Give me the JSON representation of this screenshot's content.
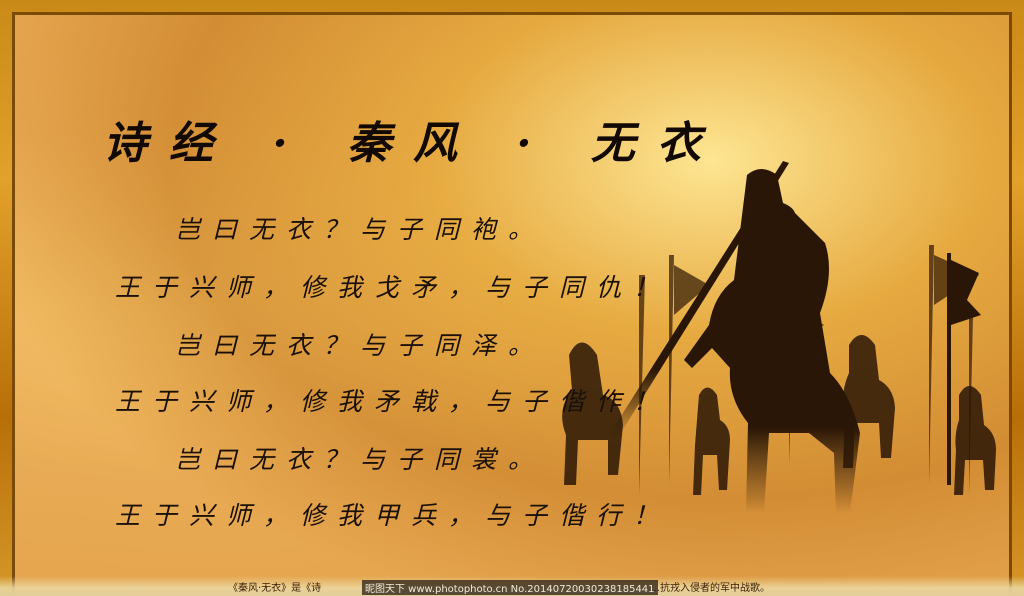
{
  "title": "诗经 · 秦风 · 无衣",
  "poem": [
    "岂曰无衣？与子同袍。",
    "王于兴师，修我戈矛，与子同仇！",
    "岂曰无衣？与子同泽。",
    "王于兴师，修我矛戟，与子偕作！",
    "岂曰无衣？与子同裳。",
    "王于兴师，修我甲兵，与子偕行！"
  ],
  "caption": "《秦风·无衣》是《诗",
  "caption_tail": "…抗戎入侵者的军中战歌。",
  "watermark": "昵图天下 www.photophoto.cn  No.20140720030238185441",
  "colors": {
    "frame": "#c98a17",
    "paper": "#e8b663",
    "ink": "#120a02",
    "silhouette": "#2a1606"
  }
}
